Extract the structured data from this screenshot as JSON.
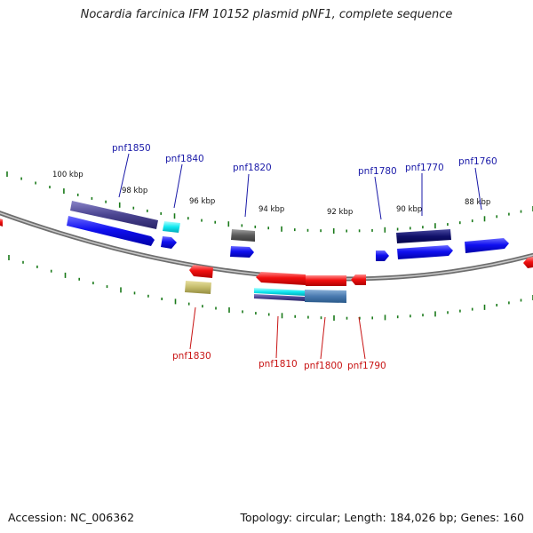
{
  "title": "Nocardia farcinica IFM 10152 plasmid pNF1, complete sequence",
  "footer": {
    "accession": "Accession: NC_006362",
    "summary": "Topology: circular; Length: 184,026 bp; Genes: 160"
  },
  "colors": {
    "backbone": "#8a8a8a",
    "tick": "#1a7a1a",
    "forward_label": "#1a1aa8",
    "reverse_label": "#c81414"
  },
  "scale_labels": [
    "100 kbp",
    "98 kbp",
    "96 kbp",
    "94 kbp",
    "92 kbp",
    "90 kbp",
    "88 kbp"
  ],
  "forward_labels": [
    "pnf1850",
    "pnf1840",
    "pnf1820",
    "pnf1780",
    "pnf1770",
    "pnf1760"
  ],
  "reverse_labels": [
    "pnf1830",
    "pnf1810",
    "pnf1800",
    "pnf1790"
  ]
}
